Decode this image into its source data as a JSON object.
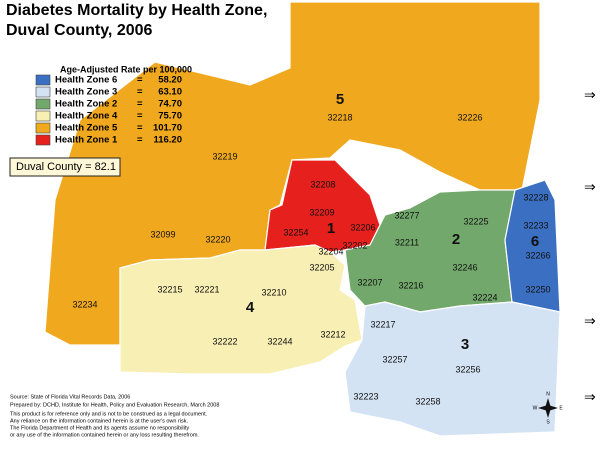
{
  "title": [
    "Diabetes Mortality by Health Zone,",
    "Duval County, 2006"
  ],
  "legend": {
    "title": "Age-Adjusted Rate per 100,000",
    "items": [
      {
        "label": "Health Zone  6",
        "sep": "=",
        "rate": "58.20",
        "color": "#3b6fc2"
      },
      {
        "label": "Health Zone  3",
        "sep": "=",
        "rate": "63.10",
        "color": "#d3e3f3"
      },
      {
        "label": "Health Zone  2",
        "sep": "=",
        "rate": "74.70",
        "color": "#72a86c"
      },
      {
        "label": "Health Zone  4",
        "sep": "=",
        "rate": "75.70",
        "color": "#f8efb4"
      },
      {
        "label": "Health Zone  5",
        "sep": "=",
        "rate": "101.70",
        "color": "#f0a81e"
      },
      {
        "label": "Health Zone  1",
        "sep": "=",
        "rate": "116.20",
        "color": "#e5201d"
      }
    ]
  },
  "county_box": "Duval County = 82.1",
  "zone_labels": [
    "5",
    "1",
    "2",
    "6",
    "4",
    "3"
  ],
  "zip_codes": [
    "32218",
    "32226",
    "32219",
    "32208",
    "32209",
    "32206",
    "32254",
    "32204",
    "32202",
    "32277",
    "32225",
    "32211",
    "32228",
    "32233",
    "32266",
    "32250",
    "32246",
    "32216",
    "32207",
    "32224",
    "32205",
    "32099",
    "32220",
    "32234",
    "32215",
    "32221",
    "32210",
    "32222",
    "32244",
    "32212",
    "32217",
    "32257",
    "32256",
    "32223",
    "32258"
  ],
  "source": [
    "Source:  State of Florida Vital Records Data, 2006",
    "Prepared by:  DCHD, Institute for Health, Policy and Evaluation Research, March 2008",
    "This product is for reference only and is not to be construed as a legal document.",
    "Any reliance on the information contained herein is at the user's own risk.",
    "The Florida Department of Health and its agents assume no responsibility",
    "or any use of the information contained herein or any loss resulting therefrom."
  ],
  "compass": [
    "N",
    "S",
    "E",
    "W"
  ],
  "arrows": [
    "⇒",
    "⇒",
    "⇒",
    "⇒"
  ]
}
